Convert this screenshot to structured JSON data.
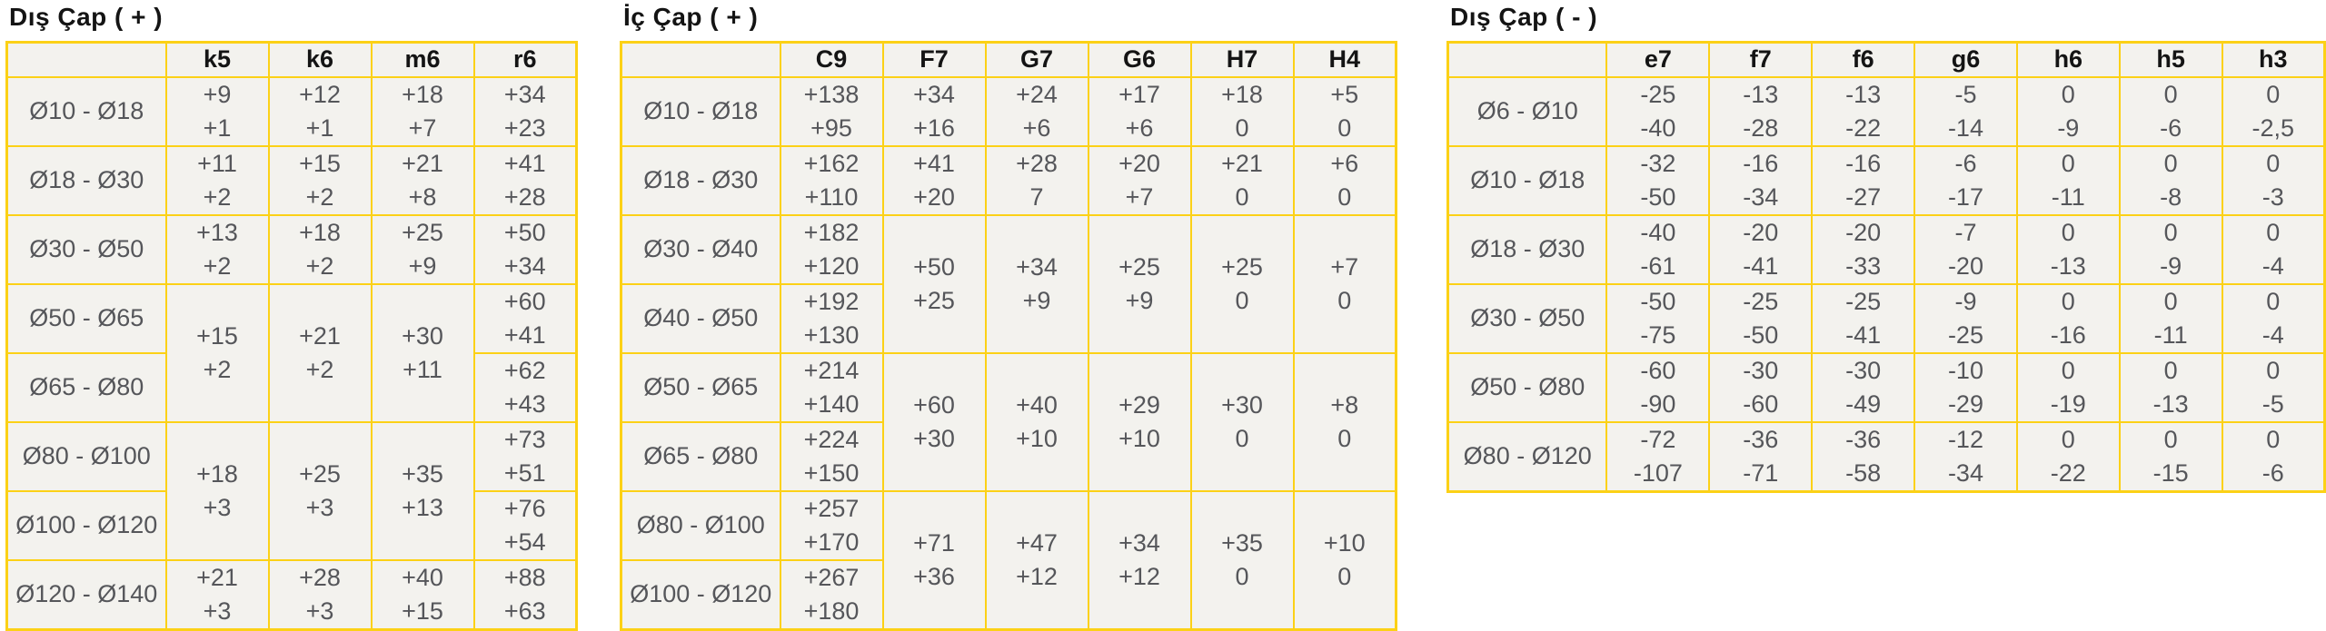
{
  "style": {
    "border_color": "#fcd116",
    "cell_bg": "#f3f2ee",
    "data_text": "#55565a",
    "header_text": "#141414",
    "page_bg": "#ffffff"
  },
  "tables": [
    {
      "title": "Dış Çap ( + )",
      "columns": [
        "",
        "k5",
        "k6",
        "m6",
        "r6"
      ],
      "rows": [
        {
          "label": "Ø10 - Ø18",
          "cells": [
            [
              "+9",
              "+1"
            ],
            [
              "+12",
              "+1"
            ],
            [
              "+18",
              "+7"
            ],
            [
              "+34",
              "+23"
            ]
          ]
        },
        {
          "label": "Ø18 - Ø30",
          "cells": [
            [
              "+11",
              "+2"
            ],
            [
              "+15",
              "+2"
            ],
            [
              "+21",
              "+8"
            ],
            [
              "+41",
              "+28"
            ]
          ]
        },
        {
          "label": "Ø30 - Ø50",
          "cells": [
            [
              "+13",
              "+2"
            ],
            [
              "+18",
              "+2"
            ],
            [
              "+25",
              "+9"
            ],
            [
              "+50",
              "+34"
            ]
          ]
        },
        {
          "label": "Ø50 - Ø65",
          "cells": [
            {
              "lines": [
                "+15",
                "+2"
              ],
              "rowspan": 2
            },
            {
              "lines": [
                "+21",
                "+2"
              ],
              "rowspan": 2
            },
            {
              "lines": [
                "+30",
                "+11"
              ],
              "rowspan": 2
            },
            [
              "+60",
              "+41"
            ]
          ]
        },
        {
          "label": "Ø65 - Ø80",
          "cells": [
            null,
            null,
            null,
            [
              "+62",
              "+43"
            ]
          ]
        },
        {
          "label": "Ø80 - Ø100",
          "cells": [
            {
              "lines": [
                "+18",
                "+3"
              ],
              "rowspan": 2
            },
            {
              "lines": [
                "+25",
                "+3"
              ],
              "rowspan": 2
            },
            {
              "lines": [
                "+35",
                "+13"
              ],
              "rowspan": 2
            },
            [
              "+73",
              "+51"
            ]
          ]
        },
        {
          "label": "Ø100 - Ø120",
          "cells": [
            null,
            null,
            null,
            [
              "+76",
              "+54"
            ]
          ]
        },
        {
          "label": "Ø120 - Ø140",
          "cells": [
            [
              "+21",
              "+3"
            ],
            [
              "+28",
              "+3"
            ],
            [
              "+40",
              "+15"
            ],
            [
              "+88",
              "+63"
            ]
          ]
        }
      ]
    },
    {
      "title": "İç Çap ( + )",
      "columns": [
        "",
        "C9",
        "F7",
        "G7",
        "G6",
        "H7",
        "H4"
      ],
      "rows": [
        {
          "label": "Ø10 - Ø18",
          "cells": [
            [
              "+138",
              "+95"
            ],
            [
              "+34",
              "+16"
            ],
            [
              "+24",
              "+6"
            ],
            [
              "+17",
              "+6"
            ],
            [
              "+18",
              "0"
            ],
            [
              "+5",
              "0"
            ]
          ]
        },
        {
          "label": "Ø18 - Ø30",
          "cells": [
            [
              "+162",
              "+110"
            ],
            [
              "+41",
              "+20"
            ],
            [
              "+28",
              "7"
            ],
            [
              "+20",
              "+7"
            ],
            [
              "+21",
              "0"
            ],
            [
              "+6",
              "0"
            ]
          ]
        },
        {
          "label": "Ø30 - Ø40",
          "cells": [
            [
              "+182",
              "+120"
            ],
            {
              "lines": [
                "+50",
                "+25"
              ],
              "rowspan": 2
            },
            {
              "lines": [
                "+34",
                "+9"
              ],
              "rowspan": 2
            },
            {
              "lines": [
                "+25",
                "+9"
              ],
              "rowspan": 2
            },
            {
              "lines": [
                "+25",
                "0"
              ],
              "rowspan": 2
            },
            {
              "lines": [
                "+7",
                "0"
              ],
              "rowspan": 2
            }
          ]
        },
        {
          "label": "Ø40 - Ø50",
          "cells": [
            [
              "+192",
              "+130"
            ],
            null,
            null,
            null,
            null,
            null
          ]
        },
        {
          "label": "Ø50 - Ø65",
          "cells": [
            [
              "+214",
              "+140"
            ],
            {
              "lines": [
                "+60",
                "+30"
              ],
              "rowspan": 2
            },
            {
              "lines": [
                "+40",
                "+10"
              ],
              "rowspan": 2
            },
            {
              "lines": [
                "+29",
                "+10"
              ],
              "rowspan": 2
            },
            {
              "lines": [
                "+30",
                "0"
              ],
              "rowspan": 2
            },
            {
              "lines": [
                "+8",
                "0"
              ],
              "rowspan": 2
            }
          ]
        },
        {
          "label": "Ø65 - Ø80",
          "cells": [
            [
              "+224",
              "+150"
            ],
            null,
            null,
            null,
            null,
            null
          ]
        },
        {
          "label": "Ø80 - Ø100",
          "cells": [
            [
              "+257",
              "+170"
            ],
            {
              "lines": [
                "+71",
                "+36"
              ],
              "rowspan": 2
            },
            {
              "lines": [
                "+47",
                "+12"
              ],
              "rowspan": 2
            },
            {
              "lines": [
                "+34",
                "+12"
              ],
              "rowspan": 2
            },
            {
              "lines": [
                "+35",
                "0"
              ],
              "rowspan": 2
            },
            {
              "lines": [
                "+10",
                "0"
              ],
              "rowspan": 2
            }
          ]
        },
        {
          "label": "Ø100 - Ø120",
          "cells": [
            [
              "+267",
              "+180"
            ],
            null,
            null,
            null,
            null,
            null
          ]
        }
      ]
    },
    {
      "title": "Dış Çap ( - )",
      "columns": [
        "",
        "e7",
        "f7",
        "f6",
        "g6",
        "h6",
        "h5",
        "h3"
      ],
      "rows": [
        {
          "label": "Ø6 - Ø10",
          "cells": [
            [
              "-25",
              "-40"
            ],
            [
              "-13",
              "-28"
            ],
            [
              "-13",
              "-22"
            ],
            [
              "-5",
              "-14"
            ],
            [
              "0",
              "-9"
            ],
            [
              "0",
              "-6"
            ],
            [
              "0",
              "-2,5"
            ]
          ]
        },
        {
          "label": "Ø10 - Ø18",
          "cells": [
            [
              "-32",
              "-50"
            ],
            [
              "-16",
              "-34"
            ],
            [
              "-16",
              "-27"
            ],
            [
              "-6",
              "-17"
            ],
            [
              "0",
              "-11"
            ],
            [
              "0",
              "-8"
            ],
            [
              "0",
              "-3"
            ]
          ]
        },
        {
          "label": "Ø18 - Ø30",
          "cells": [
            [
              "-40",
              "-61"
            ],
            [
              "-20",
              "-41"
            ],
            [
              "-20",
              "-33"
            ],
            [
              "-7",
              "-20"
            ],
            [
              "0",
              "-13"
            ],
            [
              "0",
              "-9"
            ],
            [
              "0",
              "-4"
            ]
          ]
        },
        {
          "label": "Ø30 - Ø50",
          "cells": [
            [
              "-50",
              "-75"
            ],
            [
              "-25",
              "-50"
            ],
            [
              "-25",
              "-41"
            ],
            [
              "-9",
              "-25"
            ],
            [
              "0",
              "-16"
            ],
            [
              "0",
              "-11"
            ],
            [
              "0",
              "-4"
            ]
          ]
        },
        {
          "label": "Ø50 - Ø80",
          "cells": [
            [
              "-60",
              "-90"
            ],
            [
              "-30",
              "-60"
            ],
            [
              "-30",
              "-49"
            ],
            [
              "-10",
              "-29"
            ],
            [
              "0",
              "-19"
            ],
            [
              "0",
              "-13"
            ],
            [
              "0",
              "-5"
            ]
          ]
        },
        {
          "label": "Ø80 - Ø120",
          "cells": [
            [
              "-72",
              "-107"
            ],
            [
              "-36",
              "-71"
            ],
            [
              "-36",
              "-58"
            ],
            [
              "-12",
              "-34"
            ],
            [
              "0",
              "-22"
            ],
            [
              "0",
              "-15"
            ],
            [
              "0",
              "-6"
            ]
          ]
        }
      ]
    }
  ]
}
